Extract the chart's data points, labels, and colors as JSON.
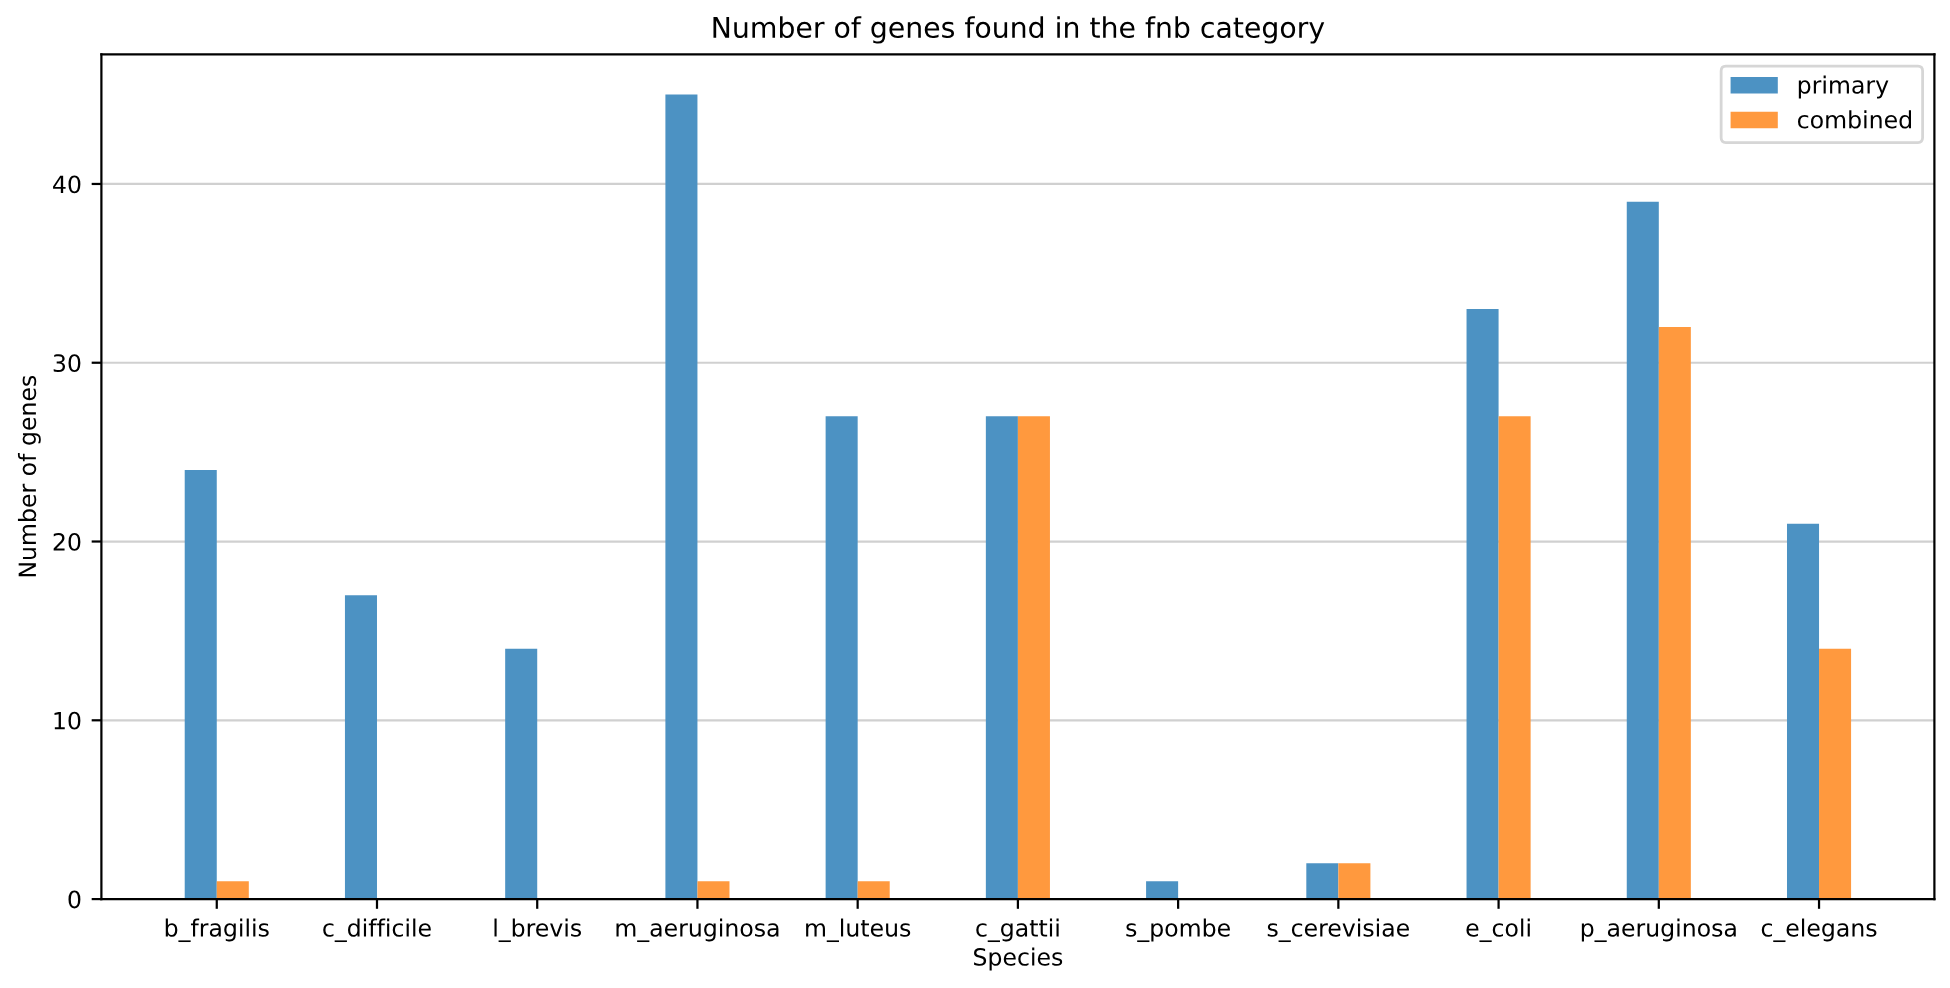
{
  "chart_data": {
    "type": "bar",
    "title": "Number of genes found in the fnb category",
    "xlabel": "Species",
    "ylabel": "Number of genes",
    "categories": [
      "b_fragilis",
      "c_difficile",
      "l_brevis",
      "m_aeruginosa",
      "m_luteus",
      "c_gattii",
      "s_pombe",
      "s_cerevisiae",
      "e_coli",
      "p_aeruginosa",
      "c_elegans"
    ],
    "series": [
      {
        "name": "primary",
        "color": "#4c92c3",
        "values": [
          24,
          17,
          14,
          45,
          27,
          27,
          1,
          2,
          33,
          39,
          21
        ]
      },
      {
        "name": "combined",
        "color": "#ff993e",
        "values": [
          1,
          0,
          0,
          1,
          1,
          27,
          0,
          2,
          27,
          32,
          14
        ]
      }
    ],
    "ylim": [
      0,
      47.25
    ],
    "yticks": [
      0,
      10,
      20,
      30,
      40
    ],
    "grid": "y",
    "legend": "top right"
  }
}
